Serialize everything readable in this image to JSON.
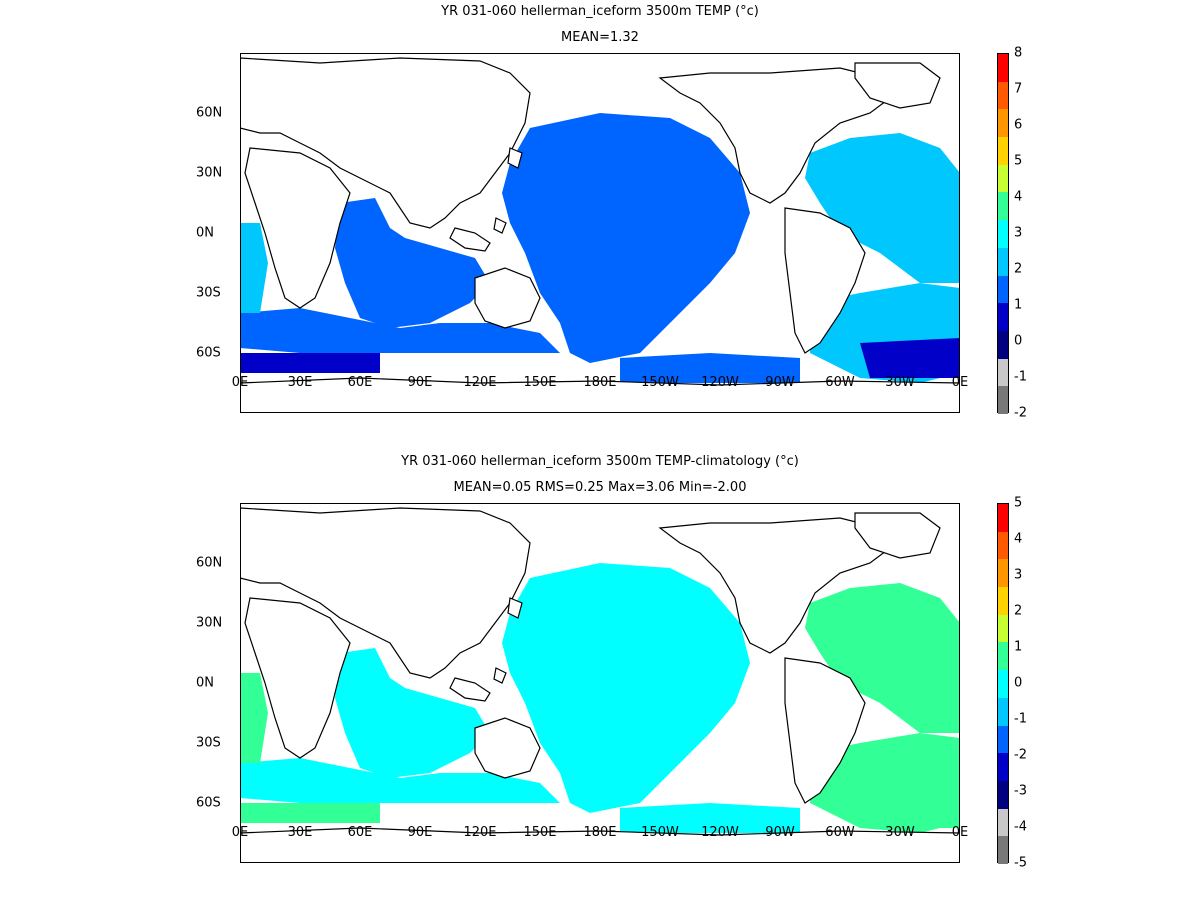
{
  "panels": [
    {
      "id": "top",
      "title": "YR 031-060 hellerman_iceform 3500m TEMP (°c)",
      "subtitle": "MEAN=1.32",
      "colorbar": {
        "labels": [
          "8",
          "7",
          "6",
          "5",
          "4",
          "3",
          "2",
          "1",
          "0",
          "-1",
          "-2"
        ],
        "colors": [
          "#ff0000",
          "#ff5a00",
          "#ff9600",
          "#ffd200",
          "#c8ff32",
          "#32ff96",
          "#00ffff",
          "#00c8ff",
          "#0064ff",
          "#0000c8",
          "#000080",
          "#c8c8c8",
          "#787878"
        ]
      },
      "field": {
        "description_colors": {
          "ocean": "#0064ff",
          "ocean_south": "#00c8ff",
          "deep_cold": "#0000c8",
          "atlantic": "#00c8ff"
        }
      }
    },
    {
      "id": "bottom",
      "title": "YR 031-060 hellerman_iceform 3500m TEMP-climatology (°c)",
      "subtitle": "MEAN=0.05   RMS=0.25   Max=3.06   Min=-2.00",
      "colorbar": {
        "labels": [
          "5",
          "4",
          "3",
          "2",
          "1",
          "0",
          "-1",
          "-2",
          "-3",
          "-4",
          "-5"
        ],
        "colors": [
          "#ff0000",
          "#ff5a00",
          "#ff9600",
          "#ffd200",
          "#c8ff32",
          "#32ff96",
          "#00ffff",
          "#00c8ff",
          "#0064ff",
          "#0000c8",
          "#000080",
          "#c8c8c8",
          "#787878"
        ]
      },
      "field": {
        "description_colors": {
          "ocean": "#00ffff",
          "ocean_south": "#32ff96",
          "deep_cold": "#32ff96",
          "atlantic": "#32ff96"
        }
      }
    }
  ],
  "axes": {
    "x_ticks": [
      "0E",
      "30E",
      "60E",
      "90E",
      "120E",
      "150E",
      "180E",
      "150W",
      "120W",
      "90W",
      "60W",
      "30W",
      "0E"
    ],
    "y_ticks": [
      "60N",
      "30N",
      "0N",
      "30S",
      "60S"
    ]
  }
}
